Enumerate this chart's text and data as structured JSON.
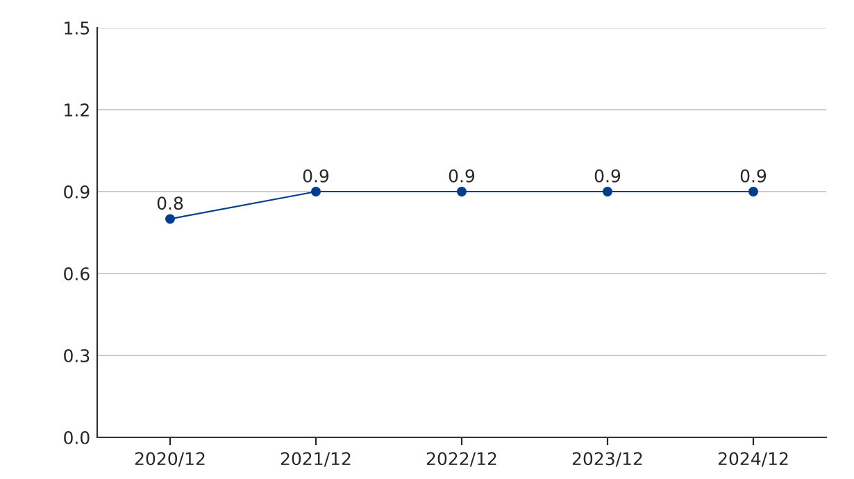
{
  "chart_data": {
    "type": "line",
    "categories": [
      "2020/12",
      "2021/12",
      "2022/12",
      "2023/12",
      "2024/12"
    ],
    "series": [
      {
        "color": "#003d8f",
        "values": [
          0.8,
          0.9,
          0.9,
          0.9,
          0.9
        ]
      }
    ],
    "ylim": [
      0,
      1.5
    ],
    "yticks": [
      {
        "value": 0,
        "label": "0.0"
      },
      0.3,
      0.6,
      0.9,
      1.2,
      1.5
    ],
    "grid": "y",
    "data_labels": true,
    "marker": "circle",
    "line_style": "solid"
  }
}
